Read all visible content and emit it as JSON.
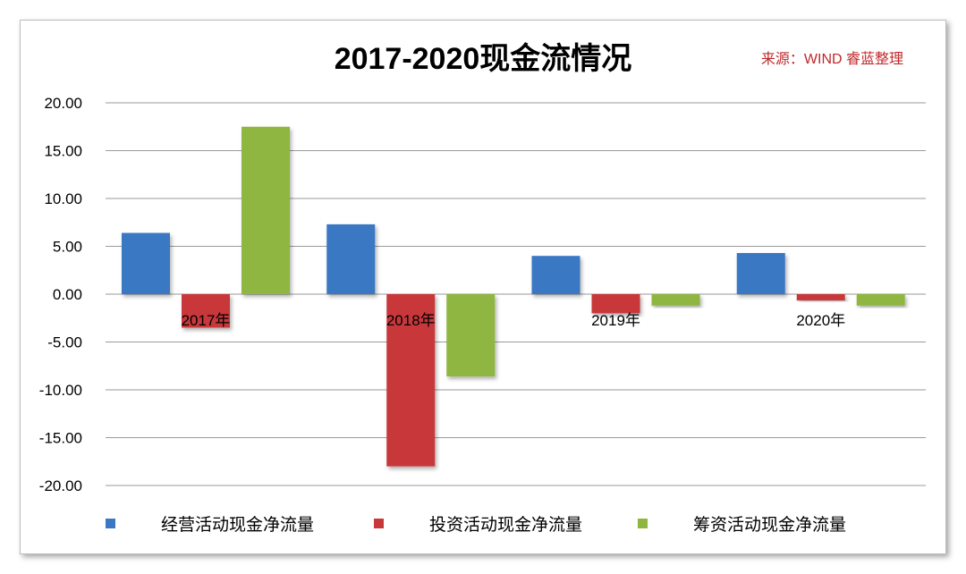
{
  "chart_data": {
    "type": "bar",
    "title": "2017-2020现金流情况",
    "source_note": "来源：WIND 睿蓝整理",
    "categories": [
      "2017年",
      "2018年",
      "2019年",
      "2020年"
    ],
    "series": [
      {
        "name": "经营活动现金净流量",
        "color": "#3b78c4",
        "values": [
          6.4,
          7.3,
          4.0,
          4.3
        ]
      },
      {
        "name": "投资活动现金净流量",
        "color": "#c8383a",
        "values": [
          -3.5,
          -18.0,
          -2.0,
          -0.65
        ]
      },
      {
        "name": "筹资活动现金净流量",
        "color": "#8fb63f",
        "values": [
          17.5,
          -8.6,
          -1.2,
          -1.2
        ]
      }
    ],
    "ylim": [
      -20,
      20
    ],
    "yticks": [
      "20.00",
      "15.00",
      "10.00",
      "5.00",
      "0.00",
      "-5.00",
      "-10.00",
      "-15.00",
      "-20.00"
    ],
    "grid": true,
    "legend_position": "bottom",
    "title_color": "#000000",
    "source_color": "#c0282b"
  }
}
